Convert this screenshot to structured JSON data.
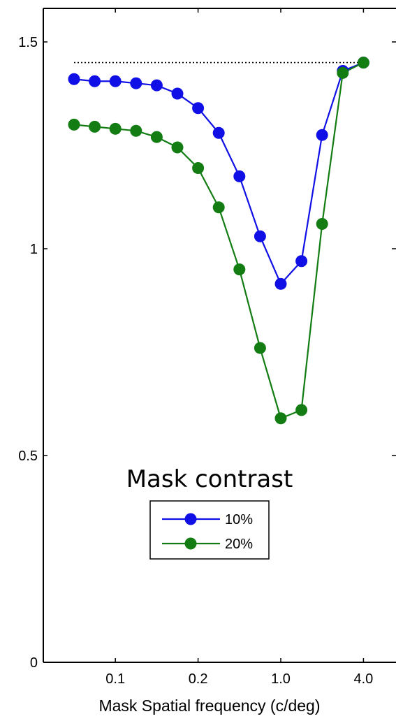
{
  "chart_data": {
    "type": "line",
    "xlabel": "Mask Spatial frequency (c/deg)",
    "ylabel": "",
    "ylim": [
      0,
      1.6
    ],
    "x_tick_labels": [
      "0.1",
      "0.2",
      "1.0",
      "4.0"
    ],
    "y_tick_labels": [
      "0",
      "0.5",
      "1",
      "1.5"
    ],
    "y_ticks": [
      0,
      0.5,
      1,
      1.5
    ],
    "x_points": [
      1,
      2,
      3,
      4,
      5,
      6,
      7,
      8,
      9,
      10,
      11,
      12,
      13,
      14,
      15,
      16
    ],
    "x_tick_positions": [
      3,
      7,
      11,
      15
    ],
    "reference_line": {
      "y": 1.45,
      "from_x": 0,
      "to_x": 16,
      "style": "dotted"
    },
    "legend": {
      "title": "Mask contrast",
      "placement": "center-bottom"
    },
    "series": [
      {
        "name": "10%",
        "color": "#1010e6",
        "values": [
          1.41,
          1.405,
          1.405,
          1.4,
          1.395,
          1.375,
          1.34,
          1.28,
          1.175,
          1.03,
          0.915,
          0.97,
          1.275,
          1.43,
          1.45,
          null
        ]
      },
      {
        "name": "20%",
        "color": "#137d13",
        "values": [
          1.3,
          1.295,
          1.29,
          1.285,
          1.27,
          1.245,
          1.195,
          1.1,
          0.95,
          0.76,
          0.59,
          0.61,
          1.06,
          1.425,
          1.45,
          null
        ]
      }
    ]
  }
}
